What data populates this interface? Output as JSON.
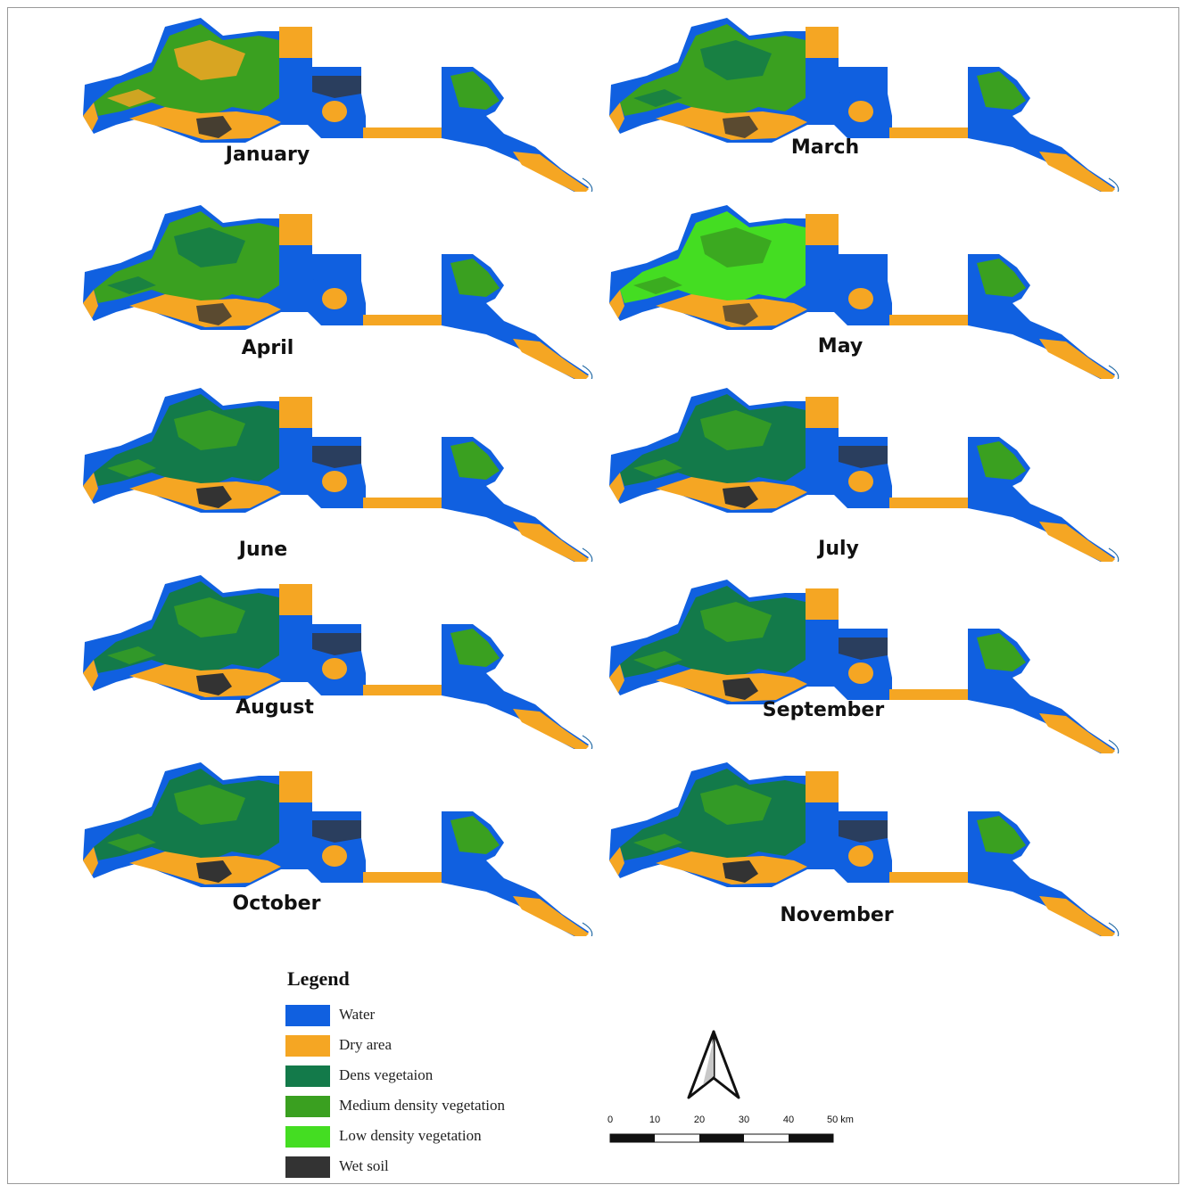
{
  "maps": [
    {
      "month": "January",
      "variant": "mixed"
    },
    {
      "month": "March",
      "variant": "medium"
    },
    {
      "month": "April",
      "variant": "medium"
    },
    {
      "month": "May",
      "variant": "light"
    },
    {
      "month": "June",
      "variant": "dense"
    },
    {
      "month": "July",
      "variant": "dense"
    },
    {
      "month": "August",
      "variant": "dense"
    },
    {
      "month": "September",
      "variant": "dense"
    },
    {
      "month": "October",
      "variant": "dense"
    },
    {
      "month": "November",
      "variant": "dense"
    }
  ],
  "legend": {
    "title": "Legend",
    "items": [
      {
        "label": "Water",
        "color": "#1060e0"
      },
      {
        "label": "Dry area",
        "color": "#f5a623"
      },
      {
        "label": "Dens vegetaion",
        "color": "#137a4a"
      },
      {
        "label": "Medium density vegetation",
        "color": "#3aa020"
      },
      {
        "label": "Low density vegetation",
        "color": "#44dd22"
      },
      {
        "label": "Wet soil",
        "color": "#333333"
      }
    ]
  },
  "north_arrow": {
    "icon": "north-arrow-icon"
  },
  "scale_bar": {
    "ticks": [
      "0",
      "10",
      "20",
      "30",
      "40",
      "50 km"
    ]
  }
}
